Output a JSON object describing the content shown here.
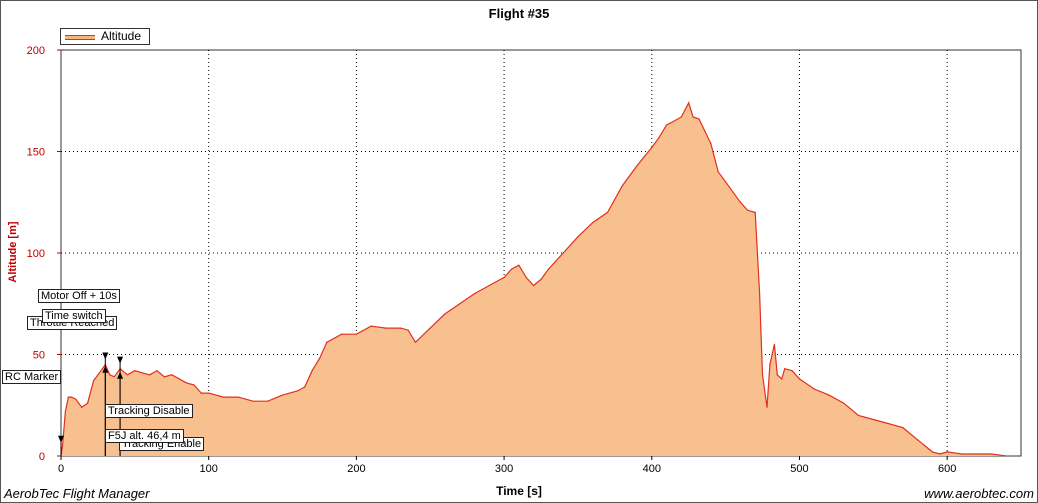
{
  "chart_data": {
    "type": "area",
    "title": "Flight #35",
    "xlabel": "Time [s]",
    "ylabel": "Altitude [m]",
    "xlim": [
      0,
      650
    ],
    "ylim": [
      0,
      200
    ],
    "x_ticks": [
      0,
      100,
      200,
      300,
      400,
      500,
      600
    ],
    "y_ticks": [
      0,
      50,
      100,
      150,
      200
    ],
    "grid": true,
    "legend_position": "top-left",
    "series": [
      {
        "name": "Altitude",
        "x": [
          0,
          1,
          3,
          5,
          7,
          10,
          14,
          18,
          22,
          25,
          28,
          30,
          33,
          36,
          40,
          45,
          50,
          55,
          60,
          65,
          70,
          75,
          80,
          85,
          90,
          95,
          100,
          110,
          120,
          130,
          140,
          150,
          160,
          165,
          170,
          175,
          180,
          190,
          200,
          210,
          220,
          230,
          235,
          240,
          250,
          260,
          270,
          280,
          290,
          300,
          305,
          310,
          315,
          320,
          325,
          330,
          340,
          350,
          360,
          370,
          380,
          390,
          400,
          405,
          410,
          415,
          420,
          425,
          428,
          432,
          436,
          440,
          445,
          450,
          460,
          465,
          470,
          473,
          475,
          478,
          480,
          483,
          485,
          488,
          490,
          495,
          500,
          510,
          520,
          530,
          540,
          550,
          560,
          570,
          580,
          590,
          595,
          600,
          610,
          620,
          630,
          640,
          645
        ],
        "values": [
          0,
          5,
          22,
          29,
          29,
          28,
          24,
          26,
          37,
          40,
          43,
          45,
          40,
          39,
          43,
          40,
          42,
          41,
          40,
          42,
          39,
          40,
          38,
          36,
          35,
          31,
          31,
          29,
          29,
          27,
          27,
          30,
          32,
          34,
          42,
          48,
          56,
          60,
          60,
          64,
          63,
          63,
          62,
          56,
          63,
          70,
          75,
          80,
          84,
          88,
          92,
          94,
          88,
          84,
          87,
          92,
          100,
          108,
          115,
          120,
          133,
          143,
          152,
          157,
          163,
          165,
          167,
          174,
          167,
          166,
          160,
          154,
          140,
          135,
          125,
          121,
          120,
          80,
          40,
          24,
          45,
          55,
          40,
          38,
          43,
          42,
          38,
          33,
          30,
          26,
          20,
          18,
          16,
          14,
          8,
          2,
          1,
          2,
          1,
          1,
          1,
          0,
          0
        ],
        "color": "#e0301e",
        "fill": "#f8c08e"
      }
    ],
    "annotations": [
      {
        "text": "RC Marker",
        "x": 0,
        "y": 8
      },
      {
        "text": "Throttle Reached",
        "x": 30,
        "y": 47
      },
      {
        "text": "Time switch",
        "x": 30,
        "y": 47
      },
      {
        "text": "Motor Off + 10s",
        "x": 40,
        "y": 45
      },
      {
        "text": "Tracking Disable",
        "x": 30,
        "y": 43
      },
      {
        "text": "F5J alt. 46,4 m",
        "x": 30,
        "y": 45
      },
      {
        "text": "Tracking Enable",
        "x": 40,
        "y": 40
      }
    ]
  },
  "footer": {
    "left": "AerobTec Flight Manager",
    "right": "www.aerobtec.com"
  }
}
